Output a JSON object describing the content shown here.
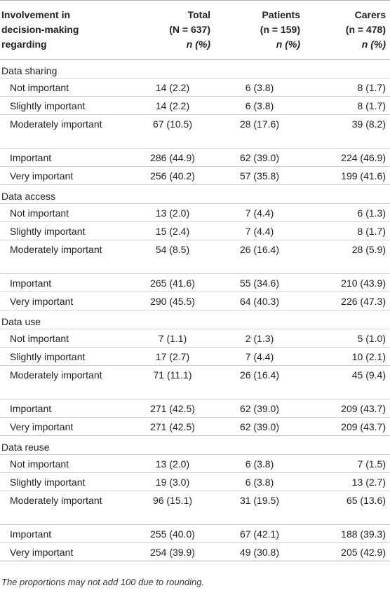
{
  "header": {
    "label_lines": [
      "Involvement in",
      "decision-making",
      "regarding"
    ],
    "columns": [
      {
        "name": "Total",
        "n_label": "(N = 637)",
        "stat": "n (%)"
      },
      {
        "name": "Patients",
        "n_label": "(n = 159)",
        "stat": "n (%)"
      },
      {
        "name": "Carers",
        "n_label": "(n = 478)",
        "stat": "n (%)"
      }
    ]
  },
  "sections": [
    {
      "title": "Data sharing",
      "rows": [
        {
          "label": "Not important",
          "total": "14 (2.2)",
          "patients": "6 (3.8)",
          "carers": "8 (1.7)"
        },
        {
          "label": "Slightly important",
          "total": "14 (2.2)",
          "patients": "6 (3.8)",
          "carers": "8 (1.7)"
        },
        {
          "label": "Moderately important",
          "total": "67 (10.5)",
          "patients": "28 (17.6)",
          "carers": "39 (8.2)"
        },
        {
          "label": "Important",
          "total": "286 (44.9)",
          "patients": "62 (39.0)",
          "carers": "224 (46.9)"
        },
        {
          "label": "Very important",
          "total": "256 (40.2)",
          "patients": "57 (35.8)",
          "carers": "199 (41.6)"
        }
      ]
    },
    {
      "title": "Data access",
      "rows": [
        {
          "label": "Not important",
          "total": "13 (2.0)",
          "patients": "7 (4.4)",
          "carers": "6 (1.3)"
        },
        {
          "label": "Slightly important",
          "total": "15 (2.4)",
          "patients": "7 (4.4)",
          "carers": "8 (1.7)"
        },
        {
          "label": "Moderately important",
          "total": "54 (8.5)",
          "patients": "26 (16.4)",
          "carers": "28 (5.9)"
        },
        {
          "label": "Important",
          "total": "265 (41.6)",
          "patients": "55 (34.6)",
          "carers": "210 (43.9)"
        },
        {
          "label": "Very important",
          "total": "290 (45.5)",
          "patients": "64 (40.3)",
          "carers": "226 (47.3)"
        }
      ]
    },
    {
      "title": "Data use",
      "rows": [
        {
          "label": "Not important",
          "total": "7 (1.1)",
          "patients": "2 (1.3)",
          "carers": "5 (1.0)"
        },
        {
          "label": "Slightly important",
          "total": "17 (2.7)",
          "patients": "7 (4.4)",
          "carers": "10 (2.1)"
        },
        {
          "label": "Moderately important",
          "total": "71 (11.1)",
          "patients": "26 (16.4)",
          "carers": "45 (9.4)"
        },
        {
          "label": "Important",
          "total": "271 (42.5)",
          "patients": "62 (39.0)",
          "carers": "209 (43.7)"
        },
        {
          "label": "Very important",
          "total": "271 (42.5)",
          "patients": "62 (39.0)",
          "carers": "209 (43.7)"
        }
      ]
    },
    {
      "title": "Data reuse",
      "rows": [
        {
          "label": "Not important",
          "total": "13 (2.0)",
          "patients": "6 (3.8)",
          "carers": "7 (1.5)"
        },
        {
          "label": "Slightly important",
          "total": "19 (3.0)",
          "patients": "6 (3.8)",
          "carers": "13 (2.7)"
        },
        {
          "label": "Moderately important",
          "total": "96 (15.1)",
          "patients": "31 (19.5)",
          "carers": "65 (13.6)"
        },
        {
          "label": "Important",
          "total": "255 (40.0)",
          "patients": "67 (42.1)",
          "carers": "188 (39.3)"
        },
        {
          "label": "Very important",
          "total": "254 (39.9)",
          "patients": "49 (30.8)",
          "carers": "205 (42.9)"
        }
      ]
    }
  ],
  "footnote": "The proportions may not add 100 due to rounding."
}
